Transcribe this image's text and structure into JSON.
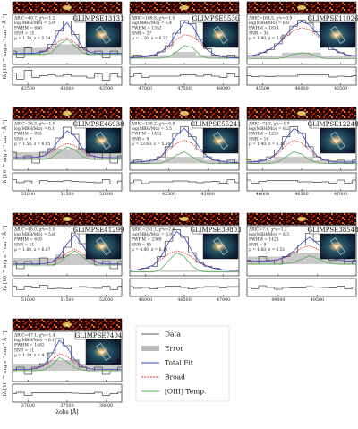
{
  "ylabel": "fλ [10⁻²⁰ erg s⁻¹ cm⁻² Å⁻¹]",
  "xlabel": "λobs [Å]",
  "residual_ylim": [
    -3,
    3
  ],
  "legend": [
    {
      "name": "Data",
      "color": "#222222"
    },
    {
      "name": "Error",
      "color": "#bbbbbb"
    },
    {
      "name": "Total Fit",
      "color": "#3344cc"
    },
    {
      "name": "Broad",
      "color": "#e03030"
    },
    {
      "name": "[OIII] Temp.",
      "color": "#55aa55"
    }
  ],
  "chart_data": [
    {
      "type": "line",
      "title": "GLIMPSE13131",
      "annotations": [
        "ΔBIC=40.7, χ²ν=1.2",
        "log(MBH/M⊙) = 5.9",
        "FWHM = 656",
        "SNR = 15",
        "μ = 1.30, z = 5.54"
      ],
      "xlim": [
        42300,
        43700
      ],
      "xticks": [
        42500,
        43000,
        43500
      ],
      "ylim": [
        -3,
        12
      ],
      "x": [
        42300,
        42400,
        42500,
        42600,
        42700,
        42800,
        42900,
        43000,
        43100,
        43200,
        43300,
        43400,
        43500,
        43600,
        43700
      ],
      "data": [
        1,
        -1,
        2,
        0,
        1,
        3,
        7,
        10,
        6,
        2,
        0,
        1,
        -1,
        1,
        0
      ],
      "error": [
        2,
        2,
        2,
        2,
        2,
        2,
        3,
        3,
        3,
        2,
        2,
        2,
        2,
        2,
        2
      ],
      "total": [
        0.3,
        0.3,
        0.3,
        0.4,
        0.8,
        2.5,
        7,
        9.5,
        6,
        2,
        0.6,
        0.3,
        0.3,
        0.3,
        0.3
      ],
      "broad": [
        0.3,
        0.3,
        0.3,
        0.4,
        0.8,
        2,
        4,
        5,
        3.5,
        1.5,
        0.6,
        0.3,
        0.3,
        0.3,
        0.3
      ],
      "oiii": [
        0,
        0,
        0,
        0,
        0,
        0.5,
        3,
        4.5,
        2.5,
        0.5,
        0,
        0,
        0,
        0,
        0
      ],
      "residual": [
        1,
        -1,
        2,
        -0.4,
        0.2,
        0.5,
        0,
        0.5,
        0,
        0,
        -0.6,
        0.7,
        -1.3,
        0.7,
        -0.3
      ]
    },
    {
      "type": "line",
      "title": "GLIMPSE5536",
      "annotations": [
        "ΔBIC=169.8, χ²ν=1.0",
        "log(MBH/M⊙) = 6.4",
        "FWHM = 1352",
        "SNR = 27",
        "μ = 1.20, z = 6.22"
      ],
      "xlim": [
        46800,
        48200
      ],
      "xticks": [
        47000,
        47500,
        48000
      ],
      "ylim": [
        -2,
        14
      ],
      "x": [
        46800,
        46900,
        47000,
        47100,
        47200,
        47300,
        47400,
        47500,
        47600,
        47700,
        47800,
        47900,
        48000,
        48100,
        48200
      ],
      "data": [
        0,
        1,
        0,
        1,
        2,
        4,
        8,
        12,
        11,
        6,
        3,
        1,
        0,
        1,
        0
      ],
      "error": [
        1,
        1,
        1,
        1,
        1,
        1,
        2,
        2,
        2,
        1,
        1,
        1,
        1,
        1,
        1
      ],
      "total": [
        0.2,
        0.3,
        0.5,
        1,
        2,
        4,
        8,
        11.5,
        10.5,
        6,
        2.5,
        1,
        0.4,
        0.2,
        0.2
      ],
      "broad": [
        0.2,
        0.3,
        0.5,
        1,
        2,
        3.5,
        6,
        7.5,
        7,
        5,
        2.5,
        1,
        0.4,
        0.2,
        0.2
      ],
      "oiii": [
        0,
        0,
        0,
        0,
        0,
        0.5,
        2,
        4,
        3.5,
        1,
        0,
        0,
        0,
        0,
        0
      ],
      "residual": [
        -0.2,
        0.7,
        -0.5,
        0,
        0,
        0,
        0,
        0.5,
        0.5,
        0,
        0.5,
        0,
        -0.4,
        0.8,
        -0.2
      ]
    },
    {
      "type": "line",
      "title": "GLIMPSE11026",
      "annotations": [
        "ΔBIC=164.5, χ²ν=0.9",
        "log(MBH/M⊙) = 6.8",
        "FWHM = 1814",
        "SNR = 34",
        "μ = 1.80, z = 5.97"
      ],
      "xlim": [
        45300,
        46700
      ],
      "xticks": [
        45500,
        46000,
        46500
      ],
      "ylim": [
        -2,
        15
      ],
      "x": [
        45300,
        45400,
        45500,
        45600,
        45700,
        45800,
        45900,
        46000,
        46100,
        46200,
        46300,
        46400,
        46500,
        46600,
        46700
      ],
      "data": [
        1,
        1,
        2,
        3,
        5,
        8,
        11,
        13,
        12,
        9,
        6,
        3,
        2,
        1,
        1
      ],
      "error": [
        1,
        1,
        1,
        1,
        1,
        2,
        2,
        2,
        2,
        2,
        1,
        1,
        1,
        1,
        1
      ],
      "total": [
        0.8,
        1.2,
        2,
        3.2,
        5,
        8,
        11,
        12.5,
        11.5,
        8.5,
        5.5,
        3.3,
        2,
        1.2,
        0.8
      ],
      "broad": [
        0.8,
        1.2,
        2,
        3.2,
        5,
        7.5,
        9.5,
        10.5,
        9.8,
        7.8,
        5.5,
        3.3,
        2,
        1.2,
        0.8
      ],
      "oiii": [
        0,
        0,
        0,
        0,
        0,
        0.5,
        1.5,
        2,
        1.7,
        0.7,
        0,
        0,
        0,
        0,
        0
      ],
      "residual": [
        0.2,
        -0.2,
        0,
        -0.2,
        0,
        0,
        0,
        0.5,
        0.5,
        0.5,
        0.5,
        -0.3,
        0,
        -0.2,
        0.2
      ]
    },
    {
      "type": "line",
      "title": "GLIMPSE46938",
      "annotations": [
        "ΔBIC=36.3, χ²ν=1.0",
        "log(MBH/M⊙) = 6.1",
        "FWHM = 955",
        "SNR = 9",
        "μ = 1.50, z = 6.85"
      ],
      "xlim": [
        50800,
        52200
      ],
      "xticks": [
        51000,
        51500,
        52000
      ],
      "ylim": [
        -3,
        11
      ],
      "x": [
        50800,
        50900,
        51000,
        51100,
        51200,
        51300,
        51400,
        51500,
        51600,
        51700,
        51800,
        51900,
        52000,
        52100,
        52200
      ],
      "data": [
        2,
        0,
        1,
        -1,
        2,
        3,
        6,
        9,
        7,
        3,
        1,
        0,
        2,
        -1,
        1
      ],
      "error": [
        2,
        2,
        2,
        2,
        2,
        3,
        3,
        3,
        3,
        3,
        2,
        2,
        2,
        2,
        2
      ],
      "total": [
        0.5,
        0.5,
        0.5,
        0.6,
        1,
        2.5,
        5.5,
        8,
        6.5,
        3,
        1.2,
        0.6,
        0.5,
        0.5,
        0.5
      ],
      "broad": [
        0.5,
        0.5,
        0.5,
        0.6,
        1,
        2,
        3.5,
        4.5,
        3.8,
        2.2,
        1.1,
        0.6,
        0.5,
        0.5,
        0.5
      ],
      "oiii": [
        0,
        0,
        0,
        0,
        0,
        0.5,
        2,
        3.5,
        2.7,
        0.8,
        0,
        0,
        0,
        0,
        0
      ],
      "residual": [
        0.8,
        -0.3,
        0.3,
        -0.8,
        0.5,
        0.2,
        0.2,
        0.4,
        0.2,
        0,
        -0.1,
        -0.3,
        0.8,
        -0.8,
        0.3
      ]
    },
    {
      "type": "line",
      "title": "GLIMPSE55241",
      "annotations": [
        "ΔBIC=130.2, χ²ν=0.9",
        "log(MBH/M⊙) = 5.5",
        "FWHM = 1452",
        "SNR = 9",
        "μ = 23.60, z = 5.50"
      ],
      "xlim": [
        42000,
        43400
      ],
      "xticks": [
        42500,
        43000
      ],
      "ylim": [
        -2,
        13
      ],
      "x": [
        42000,
        42100,
        42200,
        42300,
        42400,
        42500,
        42600,
        42700,
        42800,
        42900,
        43000,
        43100,
        43200,
        43300,
        43400
      ],
      "data": [
        0,
        1,
        0,
        1,
        2,
        5,
        9,
        11,
        8,
        4,
        2,
        1,
        0,
        1,
        0
      ],
      "error": [
        1,
        1,
        1,
        1,
        1,
        2,
        2,
        2,
        2,
        2,
        1,
        1,
        1,
        1,
        1
      ],
      "total": [
        0.3,
        0.4,
        0.6,
        1,
        2,
        5,
        8.5,
        10.5,
        8,
        4.5,
        2,
        0.9,
        0.5,
        0.3,
        0.3
      ],
      "broad": [
        0.3,
        0.4,
        0.6,
        1,
        2,
        4,
        6,
        7,
        6,
        3.8,
        2,
        0.9,
        0.5,
        0.3,
        0.3
      ],
      "oiii": [
        0,
        0,
        0,
        0,
        0,
        1,
        2.5,
        3.5,
        2,
        0.7,
        0,
        0,
        0,
        0,
        0
      ],
      "residual": [
        -0.3,
        0.6,
        -0.6,
        0,
        0,
        0,
        0.3,
        0.3,
        0,
        -0.3,
        0,
        0.1,
        -0.5,
        0.7,
        -0.3
      ]
    },
    {
      "type": "line",
      "title": "GLIMPSE12248",
      "annotations": [
        "ΔBIC=71.7, χ²ν=1.0",
        "log(MBH/M⊙) = 6.2",
        "FWHM = 1226",
        "SNR = 14",
        "μ = 1.40, z = 6.11"
      ],
      "xlim": [
        45800,
        47200
      ],
      "xticks": [
        46000,
        46500,
        47000
      ],
      "ylim": [
        -2,
        13
      ],
      "x": [
        45800,
        45900,
        46000,
        46100,
        46200,
        46300,
        46400,
        46500,
        46600,
        46700,
        46800,
        46900,
        47000,
        47100,
        47200
      ],
      "data": [
        1,
        0,
        1,
        2,
        4,
        8,
        11,
        9,
        5,
        2,
        1,
        0,
        1,
        0,
        1
      ],
      "error": [
        1,
        1,
        1,
        1,
        2,
        2,
        2,
        2,
        2,
        1,
        1,
        1,
        1,
        1,
        1
      ],
      "total": [
        0.4,
        0.5,
        0.8,
        1.6,
        3.5,
        7.5,
        10.5,
        9,
        5,
        2.2,
        1,
        0.5,
        0.4,
        0.4,
        0.4
      ],
      "broad": [
        0.4,
        0.5,
        0.8,
        1.6,
        3,
        5.5,
        7,
        6.2,
        4,
        2,
        1,
        0.5,
        0.4,
        0.4,
        0.4
      ],
      "oiii": [
        0,
        0,
        0,
        0,
        0.5,
        2,
        3.5,
        2.8,
        1,
        0.2,
        0,
        0,
        0,
        0,
        0
      ],
      "residual": [
        0.6,
        -0.5,
        0.2,
        0.4,
        0.5,
        0.5,
        0.5,
        0,
        0,
        -0.2,
        0,
        -0.5,
        0.6,
        -0.4,
        0.6
      ]
    },
    {
      "type": "line",
      "title": "GLIMPSE41299",
      "annotations": [
        "ΔBIC=46.0, χ²ν=1.0",
        "log(MBH/M⊙) = 5.8",
        "FWHM = 649",
        "SNR = 11",
        "μ = 1.60, z = 6.87"
      ],
      "xlim": [
        50800,
        52200
      ],
      "xticks": [
        51000,
        51500,
        52000
      ],
      "ylim": [
        -3,
        11
      ],
      "x": [
        50800,
        50900,
        51000,
        51100,
        51200,
        51300,
        51400,
        51500,
        51600,
        51700,
        51800,
        51900,
        52000,
        52100,
        52200
      ],
      "data": [
        1,
        -1,
        1,
        0,
        2,
        0,
        2,
        5,
        9,
        6,
        2,
        0,
        1,
        -1,
        1
      ],
      "error": [
        2,
        2,
        2,
        2,
        2,
        2,
        3,
        3,
        3,
        3,
        2,
        2,
        2,
        2,
        2
      ],
      "total": [
        0.3,
        0.3,
        0.3,
        0.3,
        0.4,
        0.8,
        2.5,
        6,
        8.5,
        5.5,
        2,
        0.6,
        0.3,
        0.3,
        0.3
      ],
      "broad": [
        0.3,
        0.3,
        0.3,
        0.3,
        0.4,
        0.7,
        1.8,
        3.5,
        4.5,
        3.2,
        1.5,
        0.5,
        0.3,
        0.3,
        0.3
      ],
      "oiii": [
        0,
        0,
        0,
        0,
        0,
        0,
        0.7,
        2.5,
        4,
        2.3,
        0.5,
        0,
        0,
        0,
        0
      ],
      "residual": [
        0.4,
        -0.7,
        0.4,
        -0.2,
        0.8,
        -0.4,
        -0.3,
        -0.5,
        0.2,
        0.3,
        0,
        -0.3,
        0.4,
        -0.7,
        0.4
      ]
    },
    {
      "type": "line",
      "title": "GLIMPSE39803",
      "annotations": [
        "ΔBIC=251.1, χ²ν=2.6",
        "log(MBH/M⊙) = 6.9",
        "FWHM = 2369",
        "SNR = 85",
        "μ = 4.00, z = 6.10"
      ],
      "xlim": [
        45800,
        47200
      ],
      "xticks": [
        46000,
        46500,
        47000
      ],
      "ylim": [
        -2,
        24
      ],
      "x": [
        45800,
        45900,
        46000,
        46100,
        46200,
        46300,
        46400,
        46500,
        46600,
        46700,
        46800,
        46900,
        47000,
        47100,
        47200
      ],
      "data": [
        1,
        1,
        2,
        3,
        8,
        16,
        22,
        18,
        10,
        5,
        3,
        2,
        1,
        1,
        1
      ],
      "error": [
        0.5,
        0.5,
        0.5,
        0.5,
        1,
        1,
        1,
        1,
        1,
        1,
        0.5,
        0.5,
        0.5,
        0.5,
        0.5
      ],
      "total": [
        0.8,
        1.2,
        2,
        3.5,
        8,
        15.5,
        21,
        18,
        10.5,
        5,
        2.8,
        1.7,
        1.1,
        0.8,
        0.8
      ],
      "broad": [
        0.8,
        1.2,
        2,
        3.5,
        6.5,
        9.5,
        11,
        10,
        7.5,
        4.5,
        2.8,
        1.7,
        1.1,
        0.8,
        0.8
      ],
      "oiii": [
        0,
        0,
        0,
        0,
        1.5,
        6,
        10,
        8,
        3,
        0.5,
        0,
        0,
        0,
        0,
        0
      ],
      "residual": [
        0.3,
        -0.3,
        0,
        -0.5,
        0,
        0.5,
        0.5,
        0,
        -0.5,
        0,
        0.3,
        0.3,
        -0.1,
        0.3,
        0.3
      ]
    },
    {
      "type": "line",
      "title": "GLIMPSE38548",
      "annotations": [
        "ΔBIC=7.4, χ²ν=1.2",
        "log(MBH/M⊙) = 6.3",
        "FWHM = 1425",
        "SNR = 9",
        "μ = 1.60, z = 6.51"
      ],
      "xlim": [
        48600,
        50000
      ],
      "xticks": [
        49000,
        49500
      ],
      "ylim": [
        -3,
        10
      ],
      "x": [
        48600,
        48700,
        48800,
        48900,
        49000,
        49100,
        49200,
        49300,
        49400,
        49500,
        49600,
        49700,
        49800,
        49900,
        50000
      ],
      "data": [
        1,
        0,
        2,
        1,
        0,
        2,
        3,
        5,
        8,
        6,
        3,
        1,
        2,
        0,
        1
      ],
      "error": [
        2,
        2,
        2,
        2,
        2,
        2,
        3,
        3,
        3,
        3,
        3,
        2,
        2,
        2,
        2
      ],
      "total": [
        0.8,
        0.8,
        0.8,
        0.9,
        1.2,
        2,
        3.5,
        5.5,
        7,
        5.5,
        3.2,
        1.6,
        1,
        0.8,
        0.8
      ],
      "broad": [
        0.8,
        0.8,
        0.8,
        0.9,
        1.2,
        1.8,
        3,
        4.2,
        4.8,
        4,
        2.6,
        1.5,
        1,
        0.8,
        0.8
      ],
      "oiii": [
        0,
        0,
        0,
        0,
        0,
        0.2,
        0.5,
        1.3,
        2.2,
        1.5,
        0.6,
        0.1,
        0,
        0,
        0
      ],
      "residual": [
        0.1,
        -0.4,
        0.6,
        0,
        -0.6,
        0,
        -0.2,
        -0.2,
        0.3,
        0.2,
        0,
        -0.2,
        0.5,
        -0.4,
        0.1
      ]
    },
    {
      "type": "line",
      "title": "GLIMPSE7404",
      "annotations": [
        "ΔBIC=47.1, χ²ν=1.4",
        "log(MBH/M⊙) = 6.1",
        "FWHM = 1482",
        "SNR = 11",
        "μ = 1.20, z = 4.71"
      ],
      "xlim": [
        36800,
        38200
      ],
      "xticks": [
        37000,
        37500,
        38000
      ],
      "ylim": [
        -3,
        11
      ],
      "x": [
        36800,
        36900,
        37000,
        37100,
        37200,
        37300,
        37400,
        37500,
        37600,
        37700,
        37800,
        37900,
        38000,
        38100,
        38200
      ],
      "data": [
        0,
        1,
        -1,
        1,
        2,
        5,
        9,
        7,
        3,
        1,
        0,
        1,
        -1,
        0,
        1
      ],
      "error": [
        2,
        2,
        2,
        2,
        2,
        3,
        3,
        3,
        3,
        2,
        2,
        2,
        2,
        2,
        2
      ],
      "total": [
        0.4,
        0.4,
        0.4,
        0.6,
        1.5,
        4.5,
        8.5,
        6.5,
        3,
        1.2,
        0.5,
        0.4,
        0.4,
        0.4,
        0.4
      ],
      "broad": [
        0.4,
        0.4,
        0.4,
        0.6,
        1.3,
        3,
        4.8,
        4,
        2.2,
        1,
        0.5,
        0.4,
        0.4,
        0.4,
        0.4
      ],
      "oiii": [
        0,
        0,
        0,
        0,
        0.2,
        1.5,
        3.7,
        2.5,
        0.8,
        0.2,
        0,
        0,
        0,
        0,
        0
      ],
      "residual": [
        -0.2,
        0.3,
        -0.7,
        0.2,
        0.2,
        0.2,
        0.2,
        0.2,
        0,
        -0.1,
        -0.2,
        0.3,
        -0.7,
        -0.2,
        0.3
      ]
    }
  ]
}
